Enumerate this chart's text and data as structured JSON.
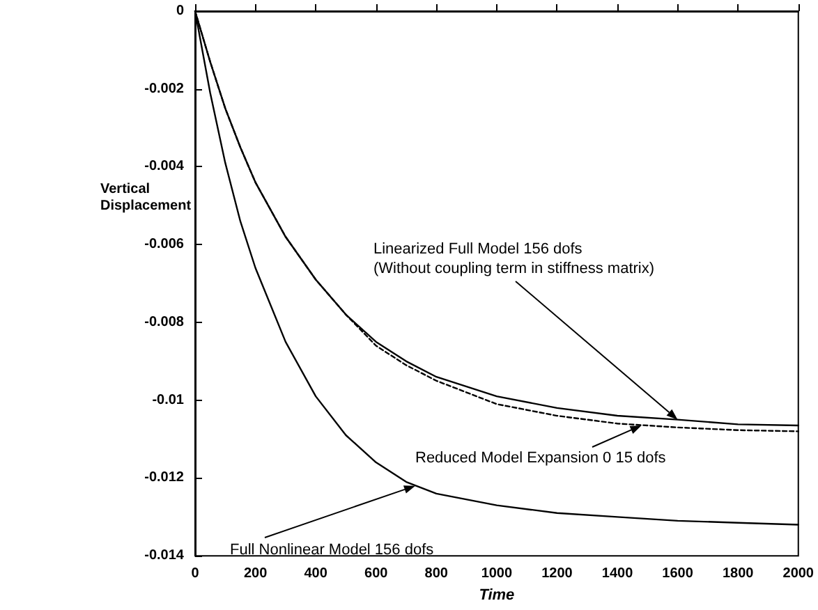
{
  "chart_data": {
    "type": "line",
    "xlabel": "Time",
    "ylabel": "Vertical\nDisplacement",
    "x": [
      0,
      50,
      100,
      150,
      200,
      300,
      400,
      500,
      600,
      700,
      800,
      1000,
      1200,
      1400,
      1600,
      1800,
      2000
    ],
    "series": [
      {
        "color": "#000000",
        "line_style": "solid",
        "values": [
          0,
          -0.0021,
          -0.0039,
          -0.0054,
          -0.0066,
          -0.0085,
          -0.0099,
          -0.0109,
          -0.0116,
          -0.0121,
          -0.0124,
          -0.0127,
          -0.0129,
          -0.013,
          -0.0131,
          -0.01315,
          -0.0132
        ]
      },
      {
        "color": "#000000",
        "line_style": "solid",
        "values": [
          0,
          -0.0013,
          -0.0025,
          -0.0035,
          -0.0044,
          -0.0058,
          -0.0069,
          -0.0078,
          -0.0085,
          -0.009,
          -0.0094,
          -0.0099,
          -0.0102,
          -0.0104,
          -0.0105,
          -0.01062,
          -0.01065
        ]
      },
      {
        "color": "#000000",
        "line_style": "dashed",
        "values": [
          0,
          -0.0013,
          -0.0025,
          -0.0035,
          -0.0044,
          -0.0058,
          -0.0069,
          -0.0078,
          -0.0086,
          -0.0091,
          -0.0095,
          -0.0101,
          -0.0104,
          -0.0106,
          -0.0107,
          -0.01077,
          -0.0108
        ]
      }
    ],
    "annotations": [
      {
        "text": "Linearized Full Model 156 dofs\n(Without coupling term in stiffness matrix)",
        "x": 1600,
        "y": -0.0105
      },
      {
        "text": "Reduced Model Expansion 0 15 dofs",
        "x": 1480,
        "y": -0.01065
      },
      {
        "text": "Full Nonlinear Model 156 dofs",
        "x": 730,
        "y": -0.0122
      }
    ],
    "xlim": [
      0,
      2000
    ],
    "xticks": [
      0,
      200,
      400,
      600,
      800,
      1000,
      1200,
      1400,
      1600,
      1800,
      2000
    ],
    "ylim": [
      -0.014,
      0
    ],
    "yticks": [
      -0.014,
      -0.012,
      -0.01,
      -0.008,
      -0.006,
      -0.004,
      -0.002,
      0
    ],
    "grid": false,
    "marker": "none"
  }
}
